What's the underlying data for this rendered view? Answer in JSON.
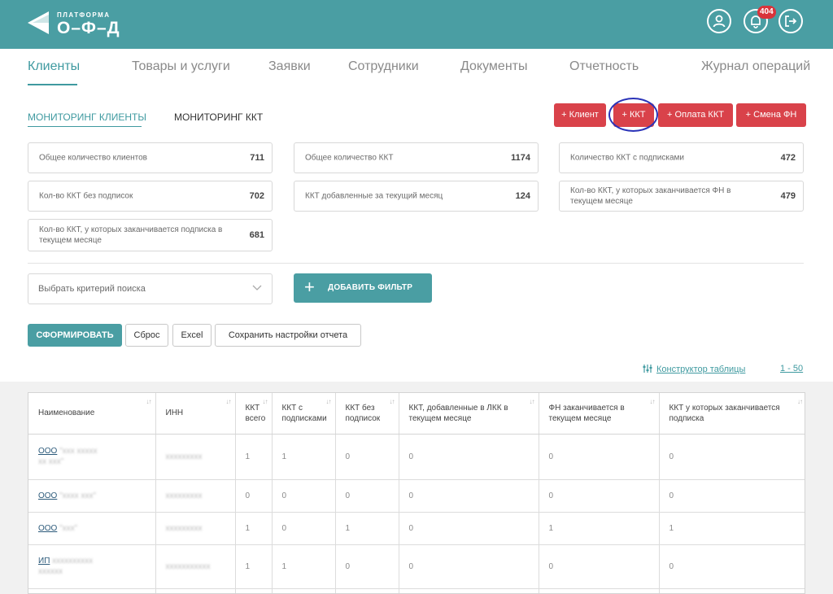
{
  "header": {
    "logo_small": "ПЛАТФОРМА",
    "logo_big": "О–Ф–Д",
    "notification_count": "404",
    "brand_color": "#4a9ea3"
  },
  "nav": {
    "tabs": [
      "Клиенты",
      "Товары и услуги",
      "Заявки",
      "Сотрудники",
      "Документы",
      "Отчетность",
      "Журнал операций"
    ]
  },
  "subtabs": [
    "МОНИТОРИНГ КЛИЕНТЫ",
    "МОНИТОРИНГ ККТ"
  ],
  "actions": [
    "+ Клиент",
    "+ ККТ",
    "+ Оплата ККТ",
    "+ Смена ФН"
  ],
  "stats": [
    {
      "label": "Общее количество клиентов",
      "value": "711"
    },
    {
      "label": "Общее количество ККТ",
      "value": "1174"
    },
    {
      "label": "Количество ККТ с подписками",
      "value": "472"
    },
    {
      "label": "Кол-во ККТ без подписок",
      "value": "702"
    },
    {
      "label": "ККТ добавленные за текущий месяц",
      "value": "124"
    },
    {
      "label": "Кол-во ККТ, у которых заканчивается ФН в текущем месяце",
      "value": "479"
    },
    {
      "label": "Кол-во ККТ, у которых заканчивается подписка в текущем месяце",
      "value": "681"
    }
  ],
  "filter": {
    "select_placeholder": "Выбрать критерий поиска",
    "add_filter_label": "ДОБАВИТЬ ФИЛЬТР"
  },
  "report_buttons": {
    "generate": "СФОРМИРОВАТЬ",
    "reset": "Сброс",
    "excel": "Excel",
    "save": "Сохранить настройки отчета"
  },
  "table_tools": {
    "constructor": "Конструктор таблицы",
    "paging": "1 - 50"
  },
  "table": {
    "headers": [
      "Наименование",
      "ИНН",
      "ККТ всего",
      "ККТ с подписками",
      "ККТ без подписок",
      "ККТ, добавленные в ЛКК в текущем месяце",
      "ФН заканчивается в текущем месяце",
      "ККТ у которых заканчивается подписка"
    ],
    "rows": [
      {
        "name_prefix": "ООО",
        "cells": [
          "1",
          "1",
          "0",
          "0",
          "0",
          "0"
        ]
      },
      {
        "name_prefix": "ООО",
        "cells": [
          "0",
          "0",
          "0",
          "0",
          "0",
          "0"
        ]
      },
      {
        "name_prefix": "ООО",
        "cells": [
          "1",
          "0",
          "1",
          "0",
          "1",
          "1"
        ]
      },
      {
        "name_prefix": "ИП",
        "cells": [
          "1",
          "1",
          "0",
          "0",
          "0",
          "0"
        ]
      }
    ]
  }
}
